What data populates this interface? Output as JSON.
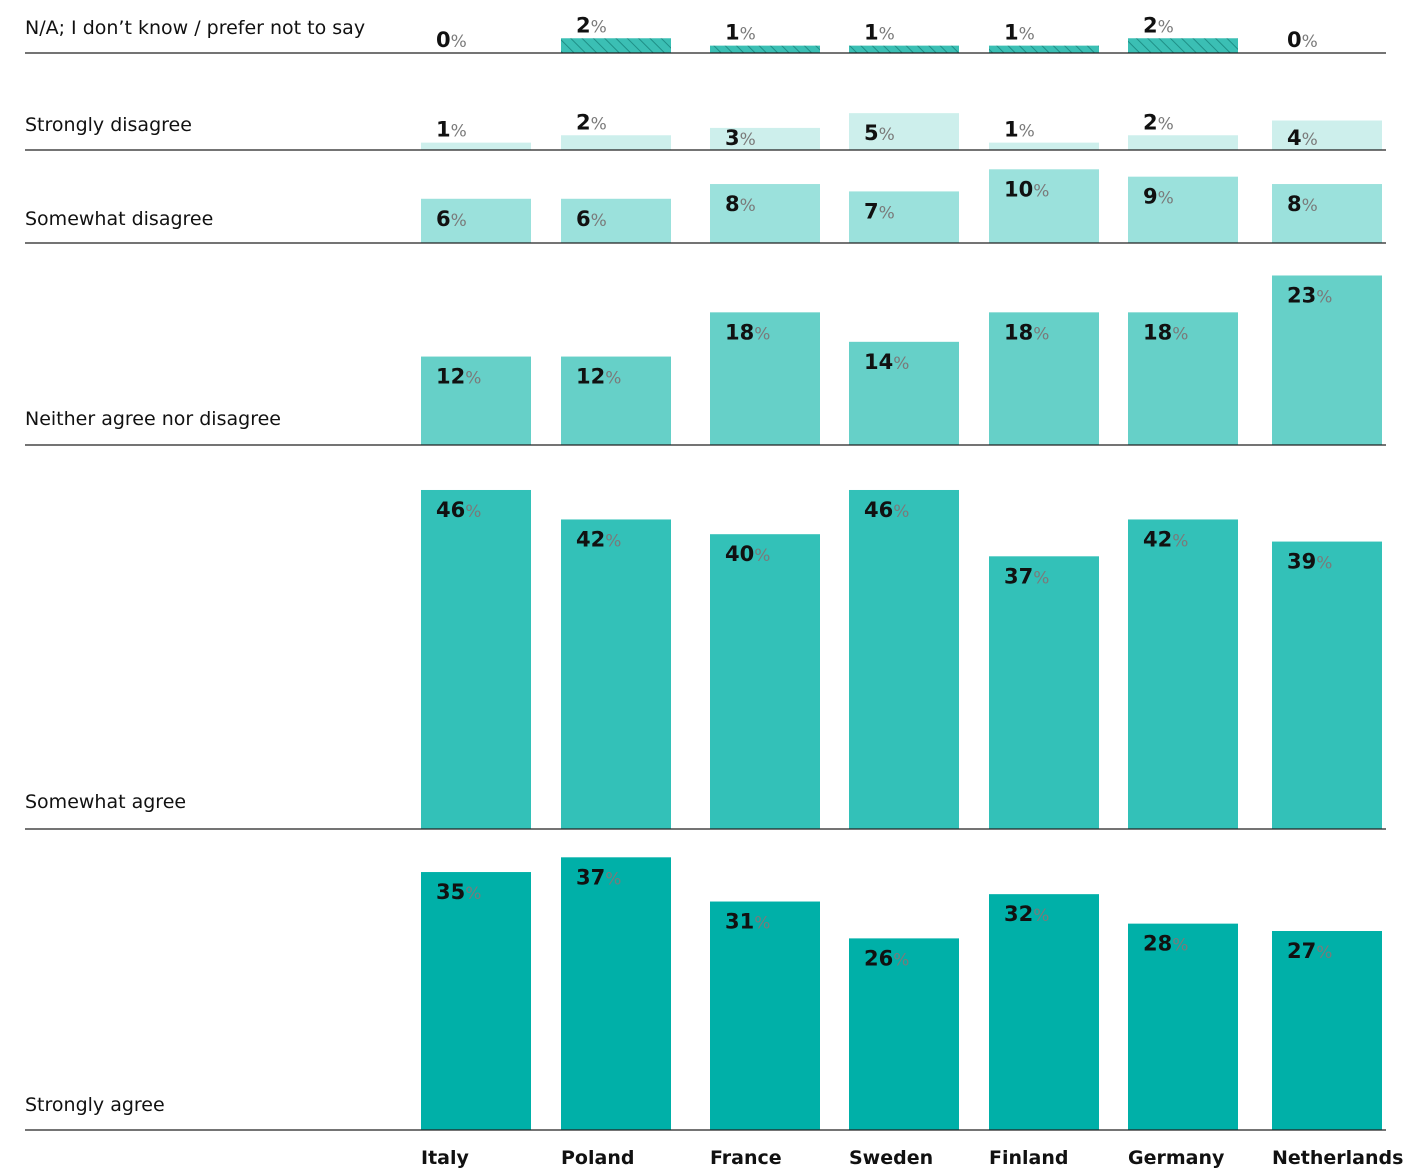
{
  "chart_data": {
    "type": "bar",
    "layout": "small-multiples-rows",
    "categories": [
      "Italy",
      "Poland",
      "France",
      "Sweden",
      "Finland",
      "Germany",
      "Netherlands"
    ],
    "unit": "%",
    "series": [
      {
        "name": "N/A; I don’t know / prefer not to say",
        "values": [
          0,
          2,
          1,
          1,
          1,
          2,
          0
        ],
        "color": "#3bbfb4",
        "pattern": "hatched"
      },
      {
        "name": "Strongly disagree",
        "values": [
          1,
          2,
          3,
          5,
          1,
          2,
          4
        ],
        "color": "#cdefec"
      },
      {
        "name": "Somewhat disagree",
        "values": [
          6,
          6,
          8,
          7,
          10,
          9,
          8
        ],
        "color": "#9be1dc"
      },
      {
        "name": "Neither agree nor disagree",
        "values": [
          12,
          12,
          18,
          14,
          18,
          18,
          23
        ],
        "color": "#66d0c8"
      },
      {
        "name": "Somewhat agree",
        "values": [
          46,
          42,
          40,
          46,
          37,
          42,
          39
        ],
        "color": "#33c1b8"
      },
      {
        "name": "Strongly agree",
        "values": [
          35,
          37,
          31,
          26,
          32,
          28,
          27
        ],
        "color": "#00b0a8"
      }
    ],
    "legend": "none",
    "grid": false
  }
}
